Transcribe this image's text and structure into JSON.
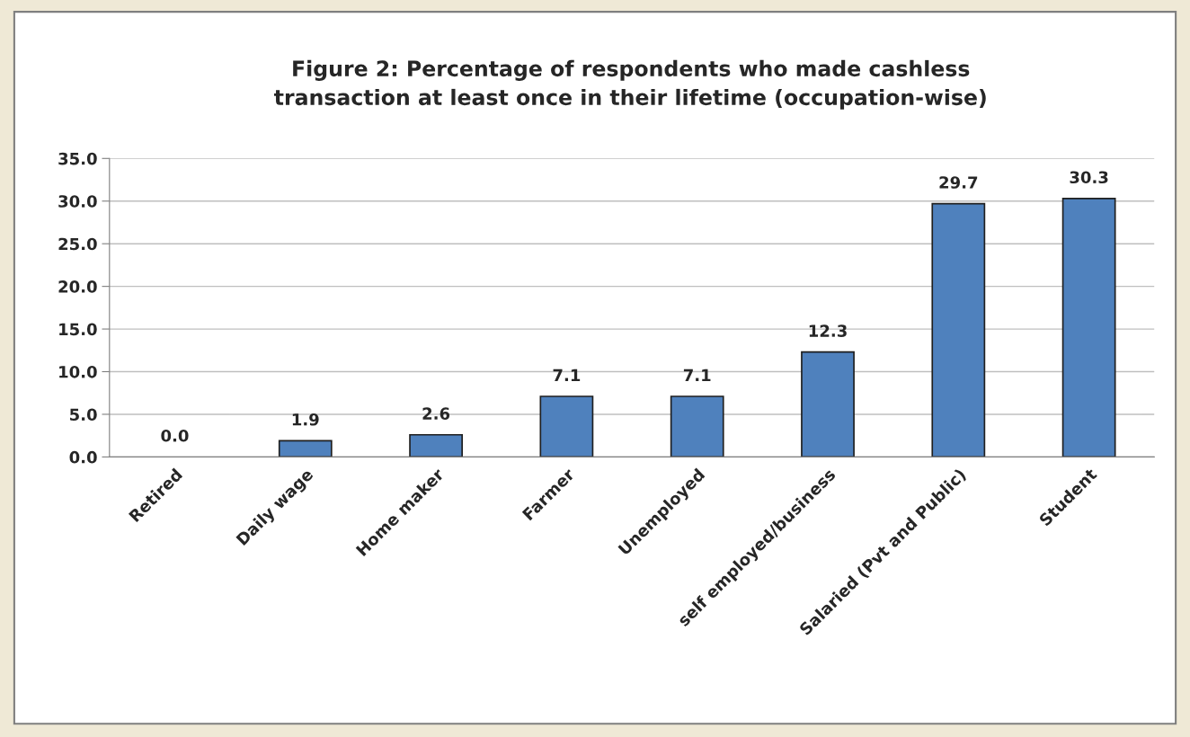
{
  "chart_data": {
    "type": "bar",
    "title": "Figure 2: Percentage of respondents who made cashless\ntransaction at least once in their lifetime (occupation-wise)",
    "categories": [
      "Retired",
      "Daily wage",
      "Home maker",
      "Farmer",
      "Unemployed",
      "self employed/business",
      "Salaried (Pvt and Public)",
      "Student"
    ],
    "values": [
      0.0,
      1.9,
      2.6,
      7.1,
      7.1,
      12.3,
      29.7,
      30.3
    ],
    "value_labels": [
      "0.0",
      "1.9",
      "2.6",
      "7.1",
      "7.1",
      "12.3",
      "29.7",
      "30.3"
    ],
    "color": "#4f81bd",
    "ylim": [
      0,
      35
    ],
    "yticks": [
      {
        "value": 0,
        "label": "0.0"
      },
      {
        "value": 5,
        "label": "5.0"
      },
      {
        "value": 10,
        "label": "10.0"
      },
      {
        "value": 15,
        "label": "15.0"
      },
      {
        "value": 20,
        "label": "20.0"
      },
      {
        "value": 25,
        "label": "25.0"
      },
      {
        "value": 30,
        "label": "30.0"
      },
      {
        "value": 35,
        "label": "35.0"
      }
    ],
    "grid": "y",
    "legend": false
  }
}
